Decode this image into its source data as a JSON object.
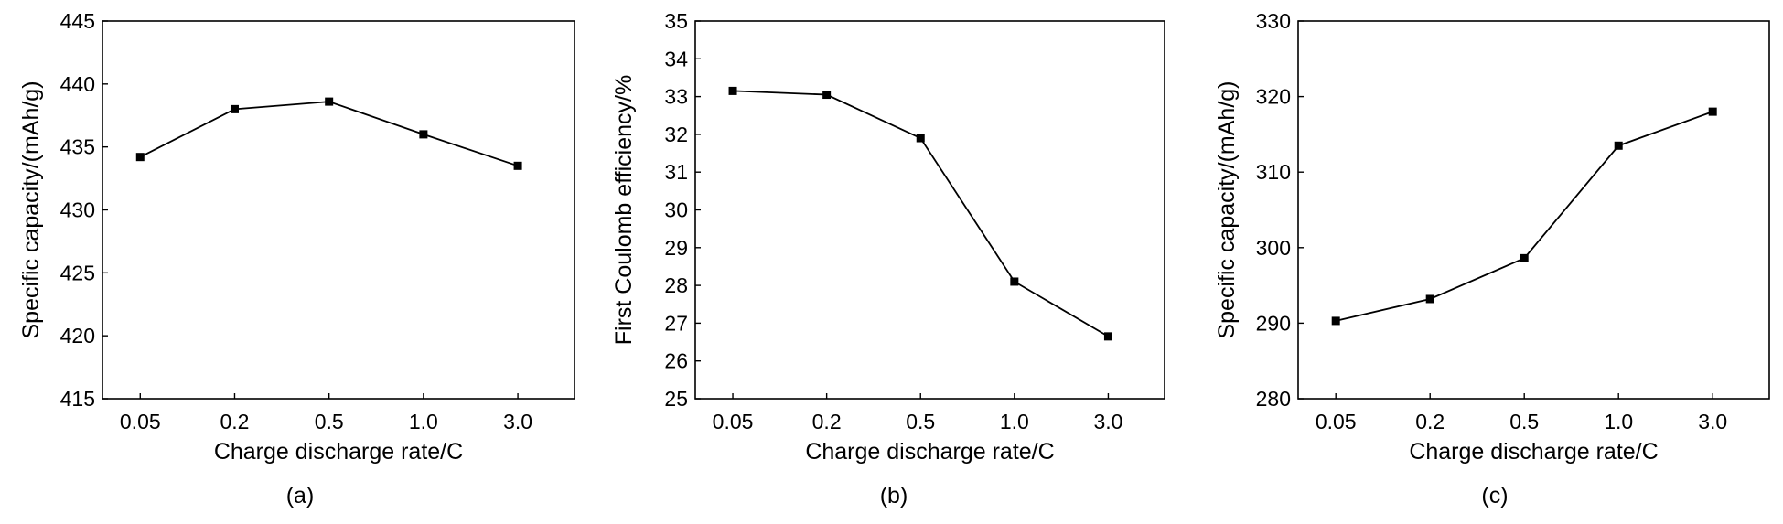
{
  "chart_data": [
    {
      "type": "line",
      "caption": "(a)",
      "xlabel": "Charge discharge rate/C",
      "ylabel": "Specific capacity/(mAh/g)",
      "categories": [
        "0.05",
        "0.2",
        "0.5",
        "1.0",
        "3.0"
      ],
      "values": [
        434.2,
        438.0,
        438.6,
        436.0,
        433.5
      ],
      "ylim": [
        415,
        445
      ],
      "yticks": [
        415,
        420,
        425,
        430,
        435,
        440,
        445
      ],
      "marker": "square",
      "color": "#000000"
    },
    {
      "type": "line",
      "caption": "(b)",
      "xlabel": "Charge discharge rate/C",
      "ylabel": "First Coulomb efficiency/%",
      "categories": [
        "0.05",
        "0.2",
        "0.5",
        "1.0",
        "3.0"
      ],
      "values": [
        33.15,
        33.05,
        31.9,
        28.1,
        26.65
      ],
      "ylim": [
        25,
        35
      ],
      "yticks": [
        25,
        26,
        27,
        28,
        29,
        30,
        31,
        32,
        33,
        34,
        35
      ],
      "marker": "square",
      "color": "#000000"
    },
    {
      "type": "line",
      "caption": "(c)",
      "xlabel": "Charge discharge rate/C",
      "ylabel": "Specific capacity/(mAh/g)",
      "categories": [
        "0.05",
        "0.2",
        "0.5",
        "1.0",
        "3.0"
      ],
      "values": [
        290.3,
        293.2,
        298.6,
        313.5,
        318.0
      ],
      "ylim": [
        280,
        330
      ],
      "yticks": [
        280,
        290,
        300,
        310,
        320,
        330
      ],
      "marker": "square",
      "color": "#000000"
    }
  ]
}
